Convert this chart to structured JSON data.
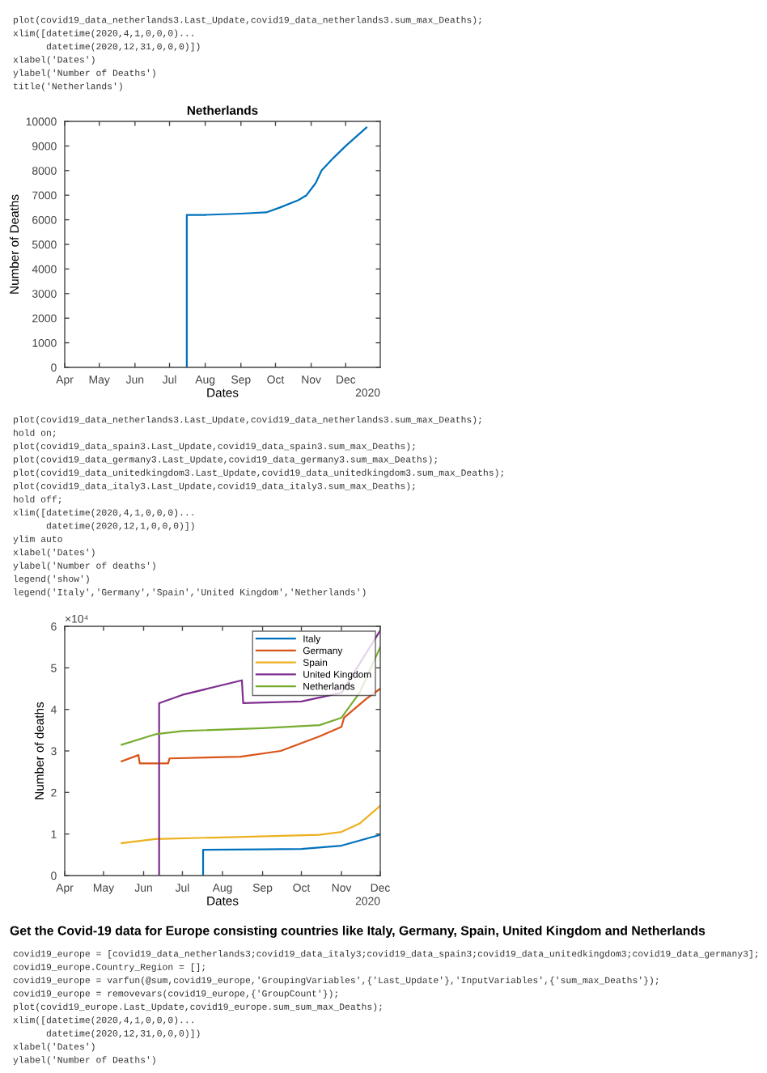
{
  "chart_data": [
    {
      "type": "other",
      "annotations": [
        "plot(covid19_data_netherlands3.Last_Update,covid19_data_netherlands3.sum_max_Deaths);",
        "xlim([datetime(2020,4,1,0,0,0)...",
        "      datetime(2020,12,31,0,0,0)])",
        "xlabel('Dates')",
        "ylabel('Number of Deaths')",
        "title('Netherlands')"
      ]
    },
    {
      "type": "line",
      "title": "Netherlands",
      "xlabel": "Dates",
      "ylabel": "Number of Deaths",
      "annotations": [
        "2020"
      ],
      "x": [
        "2020-07-16",
        "2020-07-16",
        "2020-08-01",
        "2020-09-01",
        "2020-09-23",
        "2020-10-05",
        "2020-10-21",
        "2020-10-28",
        "2020-11-05",
        "2020-11-10",
        "2020-11-20",
        "2020-12-01",
        "2020-12-19"
      ],
      "series": [
        {
          "color": "#0072bd",
          "values": [
            0,
            6200,
            6200,
            6250,
            6300,
            6500,
            6800,
            7000,
            7500,
            8000,
            8500,
            9000,
            9750
          ]
        }
      ],
      "xlim": [
        "2020-04-01",
        "2020-12-31"
      ],
      "xticks": [
        {
          "value": "2020-04-01",
          "label": "Apr"
        },
        {
          "value": "2020-05-01",
          "label": "May"
        },
        {
          "value": "2020-06-01",
          "label": "Jun"
        },
        {
          "value": "2020-07-01",
          "label": "Jul"
        },
        {
          "value": "2020-08-01",
          "label": "Aug"
        },
        {
          "value": "2020-09-01",
          "label": "Sep"
        },
        {
          "value": "2020-10-01",
          "label": "Oct"
        },
        {
          "value": "2020-11-01",
          "label": "Nov"
        },
        {
          "value": "2020-12-01",
          "label": "Dec"
        }
      ],
      "ylim": [
        0,
        10000
      ],
      "yticks": [
        0,
        1000,
        2000,
        3000,
        4000,
        5000,
        6000,
        7000,
        8000,
        9000,
        10000
      ],
      "grid": false,
      "legend": false
    },
    {
      "type": "other",
      "annotations": [
        "plot(covid19_data_netherlands3.Last_Update,covid19_data_netherlands3.sum_max_Deaths);",
        "hold on;",
        "plot(covid19_data_spain3.Last_Update,covid19_data_spain3.sum_max_Deaths);",
        "plot(covid19_data_germany3.Last_Update,covid19_data_germany3.sum_max_Deaths);",
        "plot(covid19_data_unitedkingdom3.Last_Update,covid19_data_unitedkingdom3.sum_max_Deaths);",
        "plot(covid19_data_italy3.Last_Update,covid19_data_italy3.sum_max_Deaths);",
        "hold off;",
        "xlim([datetime(2020,4,1,0,0,0)...",
        "      datetime(2020,12,1,0,0,0)])",
        "ylim auto",
        "xlabel('Dates')",
        "ylabel('Number of deaths')",
        "legend('show')",
        "legend('Italy','Germany','Spain','United Kingdom','Netherlands')"
      ]
    },
    {
      "type": "line",
      "xlabel": "Dates",
      "ylabel": "Number of deaths",
      "annotations": [
        "×10⁴",
        "2020"
      ],
      "series": [
        {
          "name": "Italy",
          "color": "#0072bd",
          "x": [
            "2020-07-17",
            "2020-07-17",
            "2020-09-01",
            "2020-10-01",
            "2020-11-01",
            "2020-12-01"
          ],
          "values": [
            0,
            0.62,
            0.63,
            0.64,
            0.72,
            0.98
          ]
        },
        {
          "name": "Germany",
          "color": "#d95319",
          "x": [
            "2020-05-15",
            "2020-05-28",
            "2020-05-29",
            "2020-06-20",
            "2020-06-21",
            "2020-08-15",
            "2020-09-15",
            "2020-10-15",
            "2020-11-01",
            "2020-11-03",
            "2020-11-20",
            "2020-12-01"
          ],
          "values": [
            2.75,
            2.9,
            2.7,
            2.7,
            2.82,
            2.86,
            3.0,
            3.35,
            3.58,
            3.8,
            4.25,
            4.5
          ]
        },
        {
          "name": "Spain",
          "color": "#edb120",
          "x": [
            "2020-05-15",
            "2020-06-10",
            "2020-08-01",
            "2020-10-15",
            "2020-11-01",
            "2020-11-15",
            "2020-12-01"
          ],
          "values": [
            0.78,
            0.88,
            0.92,
            0.98,
            1.05,
            1.25,
            1.68
          ]
        },
        {
          "name": "United Kingdom",
          "color": "#7e2f8e",
          "x": [
            "2020-06-13",
            "2020-06-13",
            "2020-07-01",
            "2020-08-16",
            "2020-08-17",
            "2020-10-01",
            "2020-11-01",
            "2020-12-01"
          ],
          "values": [
            0,
            4.15,
            4.35,
            4.7,
            4.15,
            4.19,
            4.4,
            5.9
          ]
        },
        {
          "name": "Netherlands",
          "color": "#77ac30",
          "x": [
            "2020-05-15",
            "2020-06-10",
            "2020-07-01",
            "2020-09-01",
            "2020-10-15",
            "2020-11-01",
            "2020-11-15",
            "2020-12-01"
          ],
          "values": [
            3.15,
            3.4,
            3.48,
            3.55,
            3.62,
            3.8,
            4.4,
            5.5
          ]
        }
      ],
      "xlim": [
        "2020-04-01",
        "2020-12-01"
      ],
      "xticks": [
        {
          "value": "2020-04-01",
          "label": "Apr"
        },
        {
          "value": "2020-05-01",
          "label": "May"
        },
        {
          "value": "2020-06-01",
          "label": "Jun"
        },
        {
          "value": "2020-07-01",
          "label": "Jul"
        },
        {
          "value": "2020-08-01",
          "label": "Aug"
        },
        {
          "value": "2020-09-01",
          "label": "Sep"
        },
        {
          "value": "2020-10-01",
          "label": "Oct"
        },
        {
          "value": "2020-11-01",
          "label": "Nov"
        },
        {
          "value": "2020-12-01",
          "label": "Dec"
        }
      ],
      "ylim": [
        0,
        6
      ],
      "yticks": [
        0,
        1,
        2,
        3,
        4,
        5,
        6
      ],
      "grid": false,
      "legend": "top right"
    },
    {
      "type": "other",
      "title": "Get the Covid-19 data for Europe consisting countries like Italy, Germany, Spain, United Kingdom and Netherlands",
      "annotations": [
        "covid19_europe = [covid19_data_netherlands3;covid19_data_italy3;covid19_data_spain3;covid19_data_unitedkingdom3;covid19_data_germany3];",
        "covid19_europe.Country_Region = [];",
        "covid19_europe = varfun(@sum,covid19_europe,'GroupingVariables',{'Last_Update'},'InputVariables',{'sum_max_Deaths'});",
        "covid19_europe = removevars(covid19_europe,{'GroupCount'});",
        "plot(covid19_europe.Last_Update,covid19_europe.sum_sum_max_Deaths);",
        "xlim([datetime(2020,4,1,0,0,0)...",
        "      datetime(2020,12,31,0,0,0)])",
        "xlabel('Dates')",
        "ylabel('Number of Deaths')"
      ]
    }
  ]
}
